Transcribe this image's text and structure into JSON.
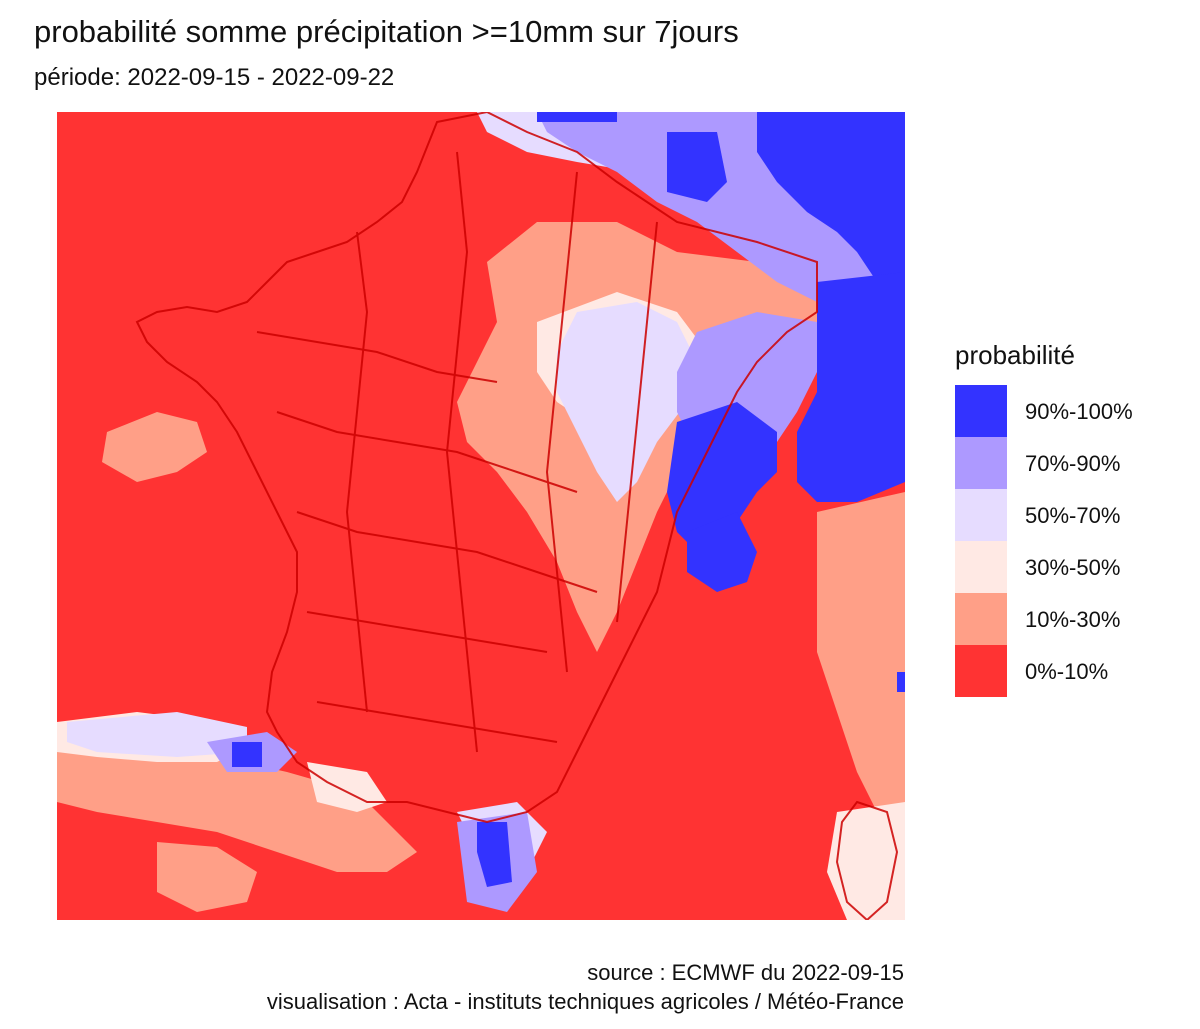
{
  "title": "probabilité somme précipitation >=10mm sur 7jours",
  "subtitle": "période: 2022-09-15 - 2022-09-22",
  "legend": {
    "title": "probabilité",
    "items": [
      {
        "label": "90%-100%",
        "color": "#3333ff"
      },
      {
        "label": "70%-90%",
        "color": "#ad99ff"
      },
      {
        "label": "50%-70%",
        "color": "#e6dcff"
      },
      {
        "label": "30%-50%",
        "color": "#ffe9e4"
      },
      {
        "label": "10%-30%",
        "color": "#ff9f87"
      },
      {
        "label": "0%-10%",
        "color": "#ff3333"
      }
    ]
  },
  "caption": {
    "line1": "source : ECMWF du 2022-09-15",
    "line2": "visualisation : Acta - instituts techniques agricoles / Météo-France"
  },
  "map": {
    "background_class": "0%-10%",
    "border_color": "#cc0000",
    "overlay_border_color": "#999999",
    "regions": [
      {
        "class": "90%-100%",
        "area": "northeast-top"
      },
      {
        "class": "90%-100%",
        "area": "east-alps"
      },
      {
        "class": "90%-100%",
        "area": "upper-rhone"
      },
      {
        "class": "90%-100%",
        "area": "south-corner"
      },
      {
        "class": "70%-90%",
        "area": "northeast"
      },
      {
        "class": "70%-90%",
        "area": "east"
      },
      {
        "class": "70%-90%",
        "area": "pyrenees"
      },
      {
        "class": "50%-70%",
        "area": "lorraine"
      },
      {
        "class": "30%-50%",
        "area": "champagne"
      },
      {
        "class": "10%-30%",
        "area": "east-center"
      },
      {
        "class": "10%-30%",
        "area": "atlantic"
      },
      {
        "class": "10%-30%",
        "area": "spain"
      }
    ]
  }
}
